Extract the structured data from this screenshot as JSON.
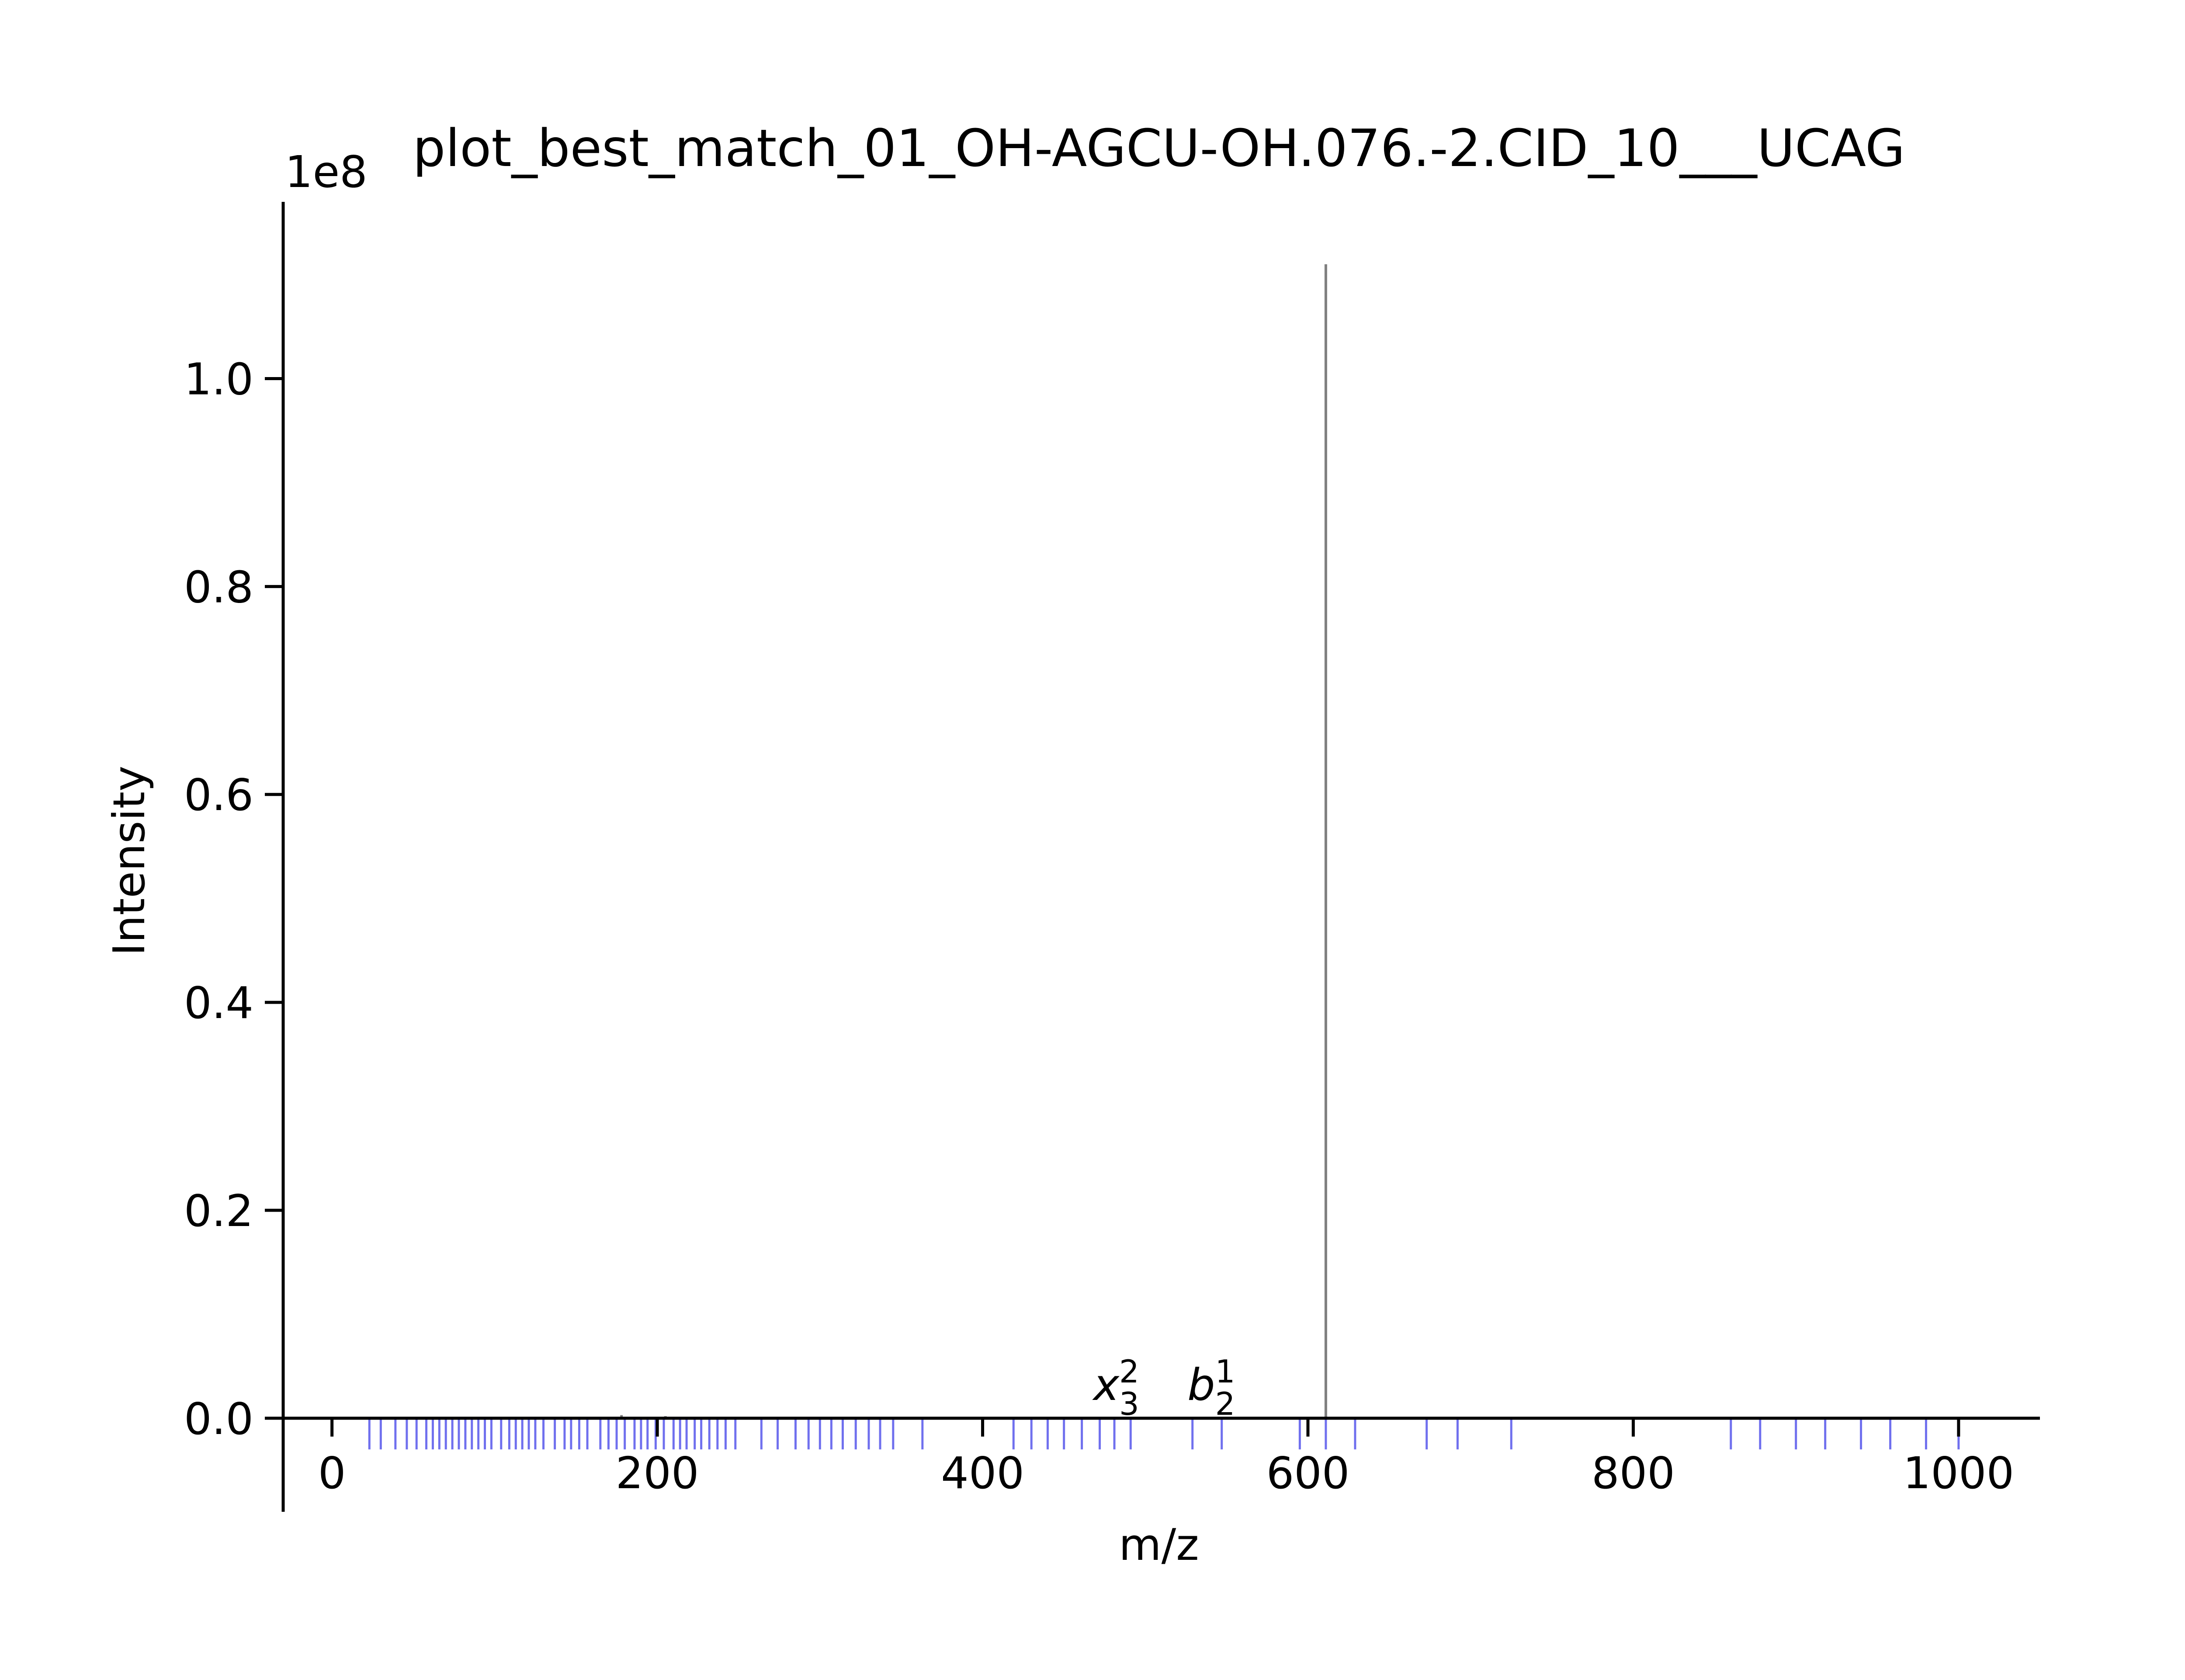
{
  "chart_data": {
    "type": "bar",
    "title": "plot_best_match_01_OH-AGCU-OH.076.-2.CID_10___UCAG",
    "xlabel": "m/z",
    "ylabel": "Intensity",
    "y_offset_label": "1e8",
    "xlim": [
      -30,
      1050
    ],
    "ylim": [
      -0.09,
      1.17
    ],
    "y_scale_factor": 100000000,
    "x_ticks": [
      0,
      200,
      400,
      600,
      800,
      1000
    ],
    "x_tick_labels": [
      "0",
      "200",
      "400",
      "600",
      "800",
      "1000"
    ],
    "y_ticks": [
      0.0,
      0.2,
      0.4,
      0.6,
      0.8,
      1.0
    ],
    "y_tick_labels": [
      "0.0",
      "0.2",
      "0.4",
      "0.6",
      "0.8",
      "1.0"
    ],
    "grid": false,
    "spines": [
      "left",
      "bottom"
    ],
    "observed_peaks": {
      "color": "#808080",
      "mz": [
        611,
        178,
        205
      ],
      "intensity": [
        1.11,
        0.003,
        0.002
      ]
    },
    "theoretical_fragments": {
      "color": "#7070ee",
      "depth": -0.03,
      "mz": [
        23,
        30,
        39,
        46,
        52,
        58,
        62,
        66,
        70,
        74,
        78,
        82,
        86,
        90,
        94,
        98,
        104,
        109,
        113,
        117,
        121,
        125,
        130,
        137,
        143,
        147,
        152,
        157,
        165,
        170,
        175,
        180,
        186,
        190,
        194,
        199,
        204,
        210,
        214,
        218,
        223,
        227,
        232,
        237,
        242,
        248,
        264,
        274,
        285,
        293,
        300,
        307,
        314,
        322,
        330,
        337,
        345,
        363,
        419,
        430,
        440,
        450,
        461,
        472,
        481,
        491,
        529,
        547,
        595,
        611,
        629,
        673,
        692,
        725,
        860,
        878,
        900,
        918,
        940,
        958,
        980,
        1000
      ]
    },
    "annotations": [
      {
        "base": "x",
        "sub": "3",
        "sup": "2",
        "mz": 492
      },
      {
        "base": "b",
        "sub": "2",
        "sup": "1",
        "mz": 551
      }
    ]
  }
}
